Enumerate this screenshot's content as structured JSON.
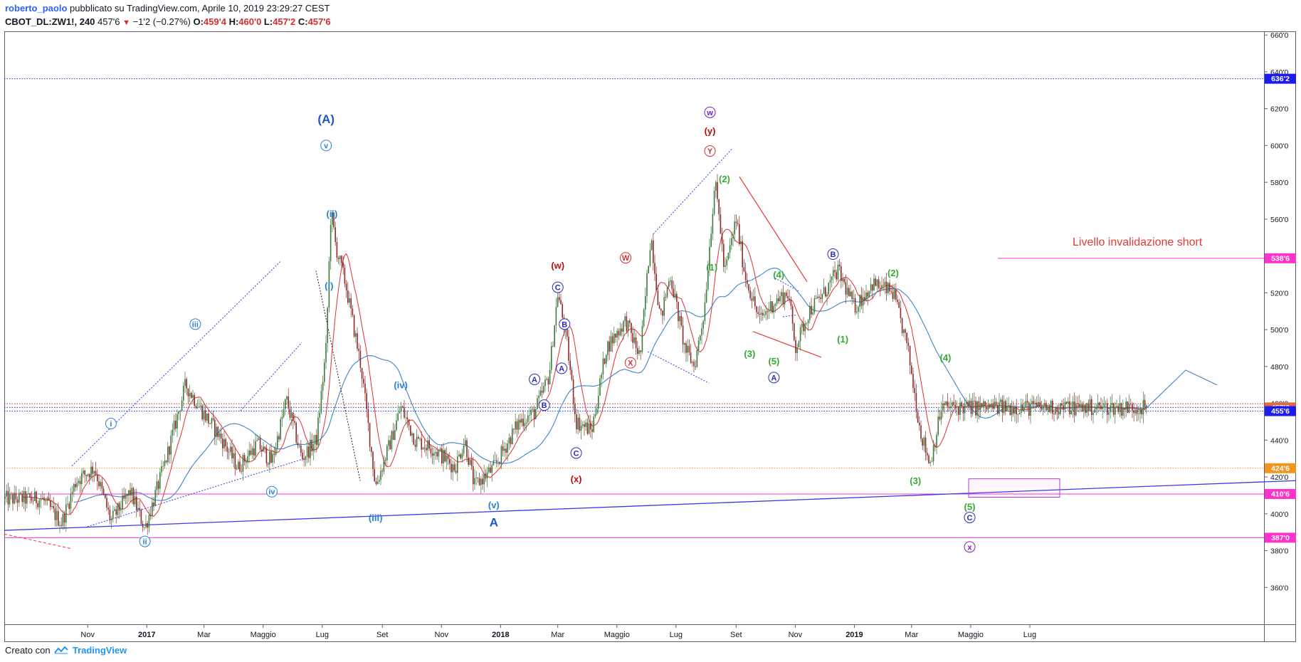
{
  "header": {
    "author": "roberto_paolo",
    "published": "pubblicato su TradingView.com, Aprile 10, 2019 23:29:27 CEST",
    "symbol": "CBOT_DL:ZW1!, 240",
    "last": "457'6",
    "change": "−1'2 (−0.27%)",
    "o_label": "O:",
    "o": "459'4",
    "h_label": "H:",
    "h": "460'0",
    "l_label": "L:",
    "l": "457'2",
    "c_label": "C:",
    "c": "457'6"
  },
  "footer": {
    "prefix": "Creato con",
    "brand": "TradingView"
  },
  "chart_data": {
    "type": "candlestick",
    "y_range": [
      340,
      662
    ],
    "y_ticks": [
      "660'0",
      "640'0",
      "620'0",
      "600'0",
      "580'0",
      "560'0",
      "540'0",
      "520'0",
      "500'0",
      "480'0",
      "460'0",
      "440'0",
      "420'0",
      "400'0",
      "380'0",
      "360'0"
    ],
    "x_ticks": [
      "Nov",
      "2017",
      "Mar",
      "Maggio",
      "Lug",
      "Set",
      "Nov",
      "2018",
      "Mar",
      "Maggio",
      "Lug",
      "Set",
      "Nov",
      "2019",
      "Mar",
      "Maggio",
      "Lug"
    ],
    "price_path": [
      [
        "2016-09-15",
        408
      ],
      [
        "2016-10-05",
        395
      ],
      [
        "2016-10-20",
        418
      ],
      [
        "2016-11-08",
        425
      ],
      [
        "2016-11-25",
        396
      ],
      [
        "2016-12-15",
        412
      ],
      [
        "2016-12-30",
        392
      ],
      [
        "2017-01-20",
        428
      ],
      [
        "2017-02-10",
        470
      ],
      [
        "2017-02-28",
        455
      ],
      [
        "2017-03-20",
        440
      ],
      [
        "2017-04-05",
        425
      ],
      [
        "2017-04-25",
        438
      ],
      [
        "2017-05-10",
        428
      ],
      [
        "2017-05-25",
        462
      ],
      [
        "2017-06-10",
        430
      ],
      [
        "2017-06-25",
        440
      ],
      [
        "2017-07-05",
        490
      ],
      [
        "2017-07-10",
        565
      ],
      [
        "2017-07-15",
        545
      ],
      [
        "2017-07-25",
        525
      ],
      [
        "2017-08-10",
        480
      ],
      [
        "2017-08-25",
        415
      ],
      [
        "2017-09-10",
        440
      ],
      [
        "2017-09-20",
        458
      ],
      [
        "2017-10-05",
        440
      ],
      [
        "2017-10-25",
        435
      ],
      [
        "2017-11-15",
        425
      ],
      [
        "2017-11-25",
        440
      ],
      [
        "2017-12-05",
        415
      ],
      [
        "2017-12-25",
        425
      ],
      [
        "2018-01-20",
        450
      ],
      [
        "2018-02-05",
        455
      ],
      [
        "2018-02-20",
        475
      ],
      [
        "2018-03-01",
        520
      ],
      [
        "2018-03-10",
        495
      ],
      [
        "2018-03-20",
        450
      ],
      [
        "2018-04-05",
        445
      ],
      [
        "2018-04-20",
        490
      ],
      [
        "2018-05-10",
        505
      ],
      [
        "2018-05-25",
        485
      ],
      [
        "2018-06-05",
        552
      ],
      [
        "2018-06-15",
        505
      ],
      [
        "2018-06-25",
        530
      ],
      [
        "2018-07-10",
        490
      ],
      [
        "2018-07-20",
        480
      ],
      [
        "2018-07-30",
        510
      ],
      [
        "2018-08-10",
        580
      ],
      [
        "2018-08-15",
        560
      ],
      [
        "2018-08-20",
        530
      ],
      [
        "2018-09-01",
        560
      ],
      [
        "2018-09-10",
        530
      ],
      [
        "2018-09-25",
        505
      ],
      [
        "2018-10-10",
        515
      ],
      [
        "2018-10-25",
        520
      ],
      [
        "2018-11-01",
        490
      ],
      [
        "2018-11-15",
        510
      ],
      [
        "2018-12-01",
        520
      ],
      [
        "2018-12-15",
        532
      ],
      [
        "2019-01-01",
        512
      ],
      [
        "2019-01-20",
        525
      ],
      [
        "2019-02-10",
        520
      ],
      [
        "2019-02-25",
        490
      ],
      [
        "2019-03-10",
        445
      ],
      [
        "2019-03-20",
        427
      ],
      [
        "2019-04-01",
        458
      ],
      [
        "2019-04-10",
        457.75
      ]
    ],
    "moving_averages": {
      "fast_color": "#e03030",
      "slow_color": "#3d84c6"
    },
    "price_levels": [
      {
        "price": 636.25,
        "label": "636'2",
        "style": "dotted",
        "color": "#2f2fd6",
        "tag_color": "#1c1cf0"
      },
      {
        "price": 538.75,
        "label": "538'6",
        "style": "solid",
        "color": "#ff33cc",
        "tag_color": "#ff33cc"
      },
      {
        "price": 459.75,
        "label": "",
        "style": "dotted",
        "color": "#c0392b",
        "tag_color": ""
      },
      {
        "price": 457.75,
        "label": "457'6",
        "style": "dotted",
        "color": "#2f2fd6",
        "tag_color": "#e06a3e"
      },
      {
        "price": 455.75,
        "label": "455'6",
        "style": "dotted",
        "color": "#2f2fd6",
        "tag_color": "#1c1cf0"
      },
      {
        "price": 424.75,
        "label": "424'6",
        "style": "dotted",
        "color": "#f0961e",
        "tag_color": "#f0961e"
      },
      {
        "price": 410.75,
        "label": "410'6",
        "style": "solid",
        "color": "#ff33cc",
        "tag_color": "#ff33cc"
      },
      {
        "price": 387.0,
        "label": "387'0",
        "style": "solid",
        "color": "#ff33cc",
        "tag_color": "#ff33cc"
      }
    ],
    "annotation_text": "Livello invalidazione short",
    "wave_labels": [
      {
        "text": "i",
        "date": "2016-11-25",
        "price": 449,
        "circle": true,
        "color": "#2a7fd4"
      },
      {
        "text": "ii",
        "date": "2016-12-30",
        "price": 385,
        "circle": true,
        "color": "#2a7fd4"
      },
      {
        "text": "iii",
        "date": "2017-02-20",
        "price": 503,
        "circle": true,
        "color": "#2a7fd4"
      },
      {
        "text": "iv",
        "date": "2017-05-10",
        "price": 412,
        "circle": true,
        "color": "#2a7fd4"
      },
      {
        "text": "v",
        "date": "2017-07-05",
        "price": 600,
        "circle": true,
        "color": "#2a7fd4"
      },
      {
        "text": "(A)",
        "date": "2017-07-05",
        "price": 614,
        "circle": false,
        "color": "#1c56c8",
        "size": 17
      },
      {
        "text": "(i)",
        "date": "2017-07-08",
        "price": 524,
        "circle": false,
        "color": "#2a7fd4"
      },
      {
        "text": "(ii)",
        "date": "2017-07-11",
        "price": 563,
        "circle": false,
        "color": "#2a7fd4"
      },
      {
        "text": "(iii)",
        "date": "2017-08-25",
        "price": 398,
        "circle": false,
        "color": "#2a7fd4"
      },
      {
        "text": "(iv)",
        "date": "2017-09-20",
        "price": 470,
        "circle": false,
        "color": "#2a7fd4"
      },
      {
        "text": "(v)",
        "date": "2017-12-25",
        "price": 405,
        "circle": false,
        "color": "#2a7fd4"
      },
      {
        "text": "A",
        "date": "2017-12-25",
        "price": 395,
        "circle": false,
        "color": "#1c56c8",
        "size": 17
      },
      {
        "text": "A",
        "date": "2018-02-05",
        "price": 473,
        "circle": true,
        "color": "#2b2bb8"
      },
      {
        "text": "B",
        "date": "2018-02-15",
        "price": 459,
        "circle": true,
        "color": "#2b2bb8"
      },
      {
        "text": "C",
        "date": "2018-03-01",
        "price": 523,
        "circle": true,
        "color": "#2b2bb8"
      },
      {
        "text": "B",
        "date": "2018-03-08",
        "price": 503,
        "circle": true,
        "color": "#2b2bb8"
      },
      {
        "text": "A",
        "date": "2018-03-05",
        "price": 479,
        "circle": true,
        "color": "#2b2bb8"
      },
      {
        "text": "C",
        "date": "2018-03-20",
        "price": 433,
        "circle": true,
        "color": "#2b2bb8"
      },
      {
        "text": "(w)",
        "date": "2018-03-01",
        "price": 535,
        "circle": false,
        "color": "#b01010"
      },
      {
        "text": "(x)",
        "date": "2018-03-20",
        "price": 419,
        "circle": false,
        "color": "#b01010"
      },
      {
        "text": "W",
        "date": "2018-05-10",
        "price": 539,
        "circle": true,
        "color": "#d03030"
      },
      {
        "text": "X",
        "date": "2018-05-15",
        "price": 482,
        "circle": true,
        "color": "#d03030"
      },
      {
        "text": "Y",
        "date": "2018-08-05",
        "price": 597,
        "circle": true,
        "color": "#d03030"
      },
      {
        "text": "(y)",
        "date": "2018-08-05",
        "price": 608,
        "circle": false,
        "color": "#b01010"
      },
      {
        "text": "w",
        "date": "2018-08-05",
        "price": 618,
        "circle": true,
        "color": "#7a1fc4"
      },
      {
        "text": "(1)",
        "date": "2018-08-07",
        "price": 534,
        "circle": false,
        "color": "#33aa33"
      },
      {
        "text": "(2)",
        "date": "2018-08-20",
        "price": 582,
        "circle": false,
        "color": "#33aa33"
      },
      {
        "text": "(3)",
        "date": "2018-09-15",
        "price": 487,
        "circle": false,
        "color": "#33aa33"
      },
      {
        "text": "(4)",
        "date": "2018-10-15",
        "price": 530,
        "circle": false,
        "color": "#33aa33"
      },
      {
        "text": "(5)",
        "date": "2018-10-10",
        "price": 483,
        "circle": false,
        "color": "#33aa33"
      },
      {
        "text": "A",
        "date": "2018-10-10",
        "price": 474,
        "circle": true,
        "color": "#2b2bb8"
      },
      {
        "text": "B",
        "date": "2018-12-10",
        "price": 541,
        "circle": true,
        "color": "#2b2bb8"
      },
      {
        "text": "(1)",
        "date": "2018-12-20",
        "price": 495,
        "circle": false,
        "color": "#33aa33"
      },
      {
        "text": "(2)",
        "date": "2019-02-10",
        "price": 531,
        "circle": false,
        "color": "#33aa33"
      },
      {
        "text": "(3)",
        "date": "2019-03-05",
        "price": 418,
        "circle": false,
        "color": "#33aa33"
      },
      {
        "text": "(4)",
        "date": "2019-04-05",
        "price": 485,
        "circle": false,
        "color": "#33aa33"
      },
      {
        "text": "(5)",
        "date": "2019-04-30",
        "price": 404,
        "circle": false,
        "color": "#33aa33"
      },
      {
        "text": "C",
        "date": "2019-04-30",
        "price": 398,
        "circle": true,
        "color": "#2b2bb8"
      },
      {
        "text": "x",
        "date": "2019-04-30",
        "price": 382,
        "circle": true,
        "color": "#7a1fc4"
      }
    ],
    "grid": false,
    "legend": "none"
  }
}
